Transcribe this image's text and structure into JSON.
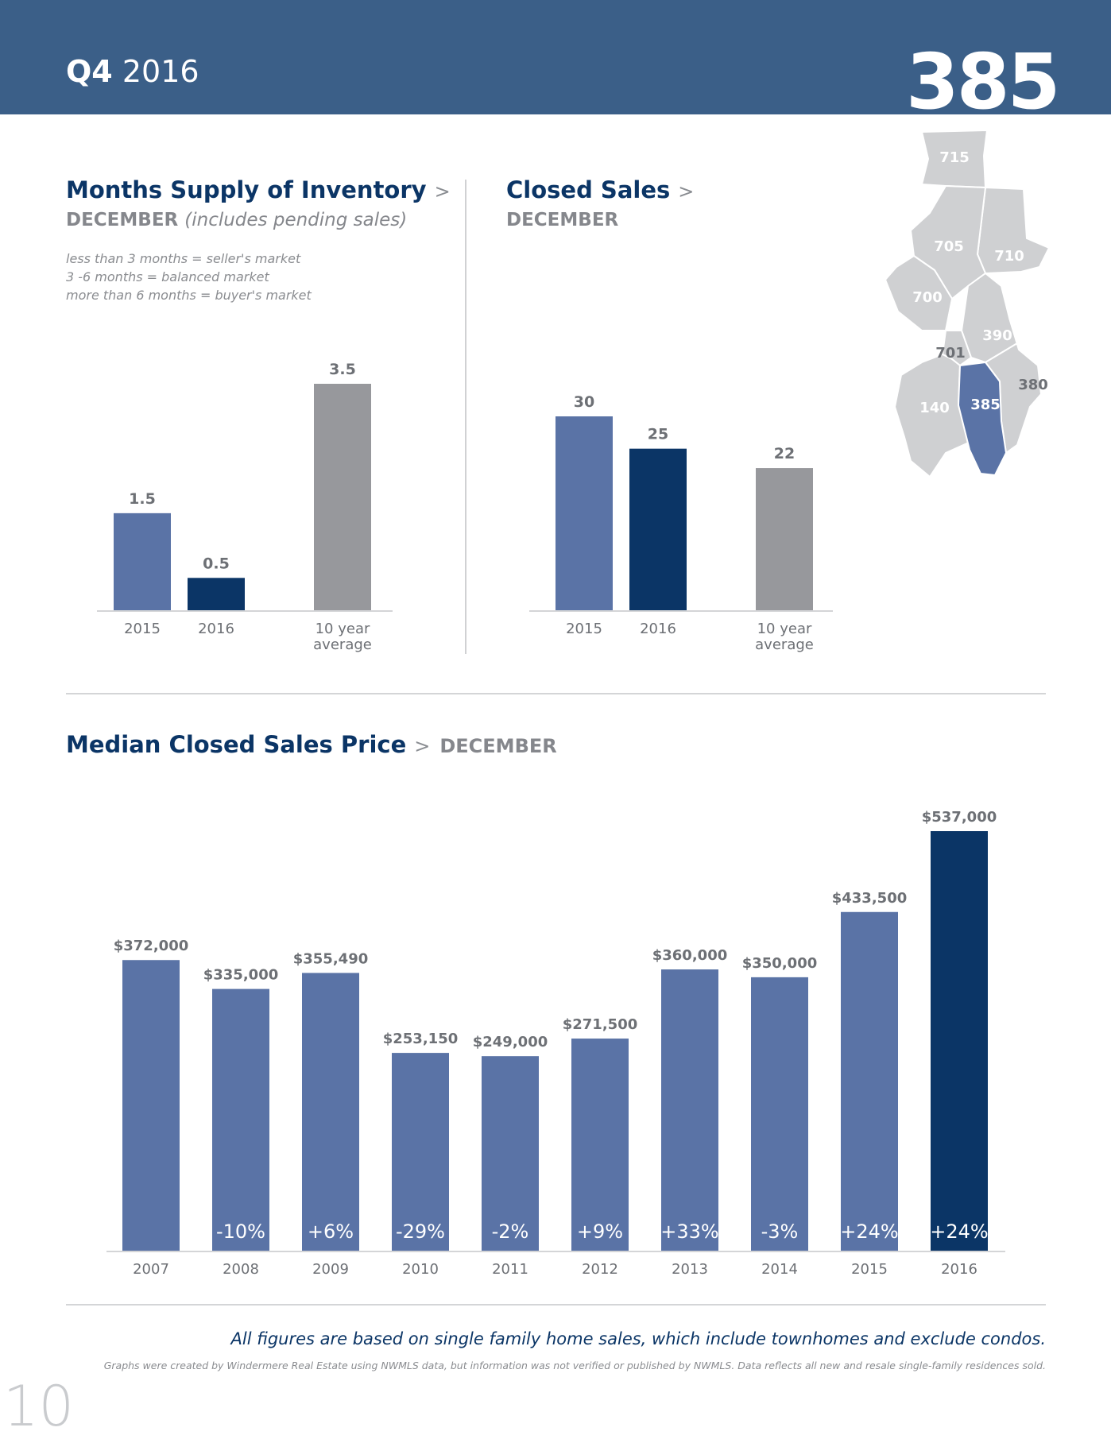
{
  "header": {
    "quarter": "Q4",
    "year": "2016",
    "region": "385"
  },
  "colors": {
    "header_bg": "#3b5f88",
    "bar_light": "#5a73a6",
    "bar_dark": "#0b3566",
    "bar_gray": "#97989c",
    "map_gray": "#cfd0d2",
    "map_highlight": "#5a73a6"
  },
  "supply": {
    "title": "Months Supply of Inventory",
    "arrow": ">",
    "subtitle": "DECEMBER",
    "subtitle_note": "(includes pending sales)",
    "notes": [
      "less than 3 months = seller's market",
      "3 -6 months = balanced market",
      "more than 6 months = buyer's market"
    ]
  },
  "closed": {
    "title": "Closed Sales",
    "arrow": ">",
    "subtitle": "DECEMBER"
  },
  "median": {
    "title": "Median Closed Sales Price",
    "arrow": ">",
    "subtitle": "DECEMBER"
  },
  "map": {
    "regions": [
      "715",
      "705",
      "710",
      "700",
      "390",
      "701",
      "380",
      "140",
      "385"
    ],
    "highlighted": "385"
  },
  "footer": {
    "note": "All figures are based on single family home sales, which include townhomes and exclude condos.",
    "disclaimer": "Graphs were created by Windermere Real Estate using NWMLS data, but information was not verified or published by NWMLS. Data reflects all new and resale single-family residences sold.",
    "page_number": "10"
  },
  "chart_data": [
    {
      "type": "bar",
      "title": "Months Supply of Inventory",
      "categories": [
        "2015",
        "2016",
        "10 year average"
      ],
      "category_lines": [
        [
          "2015"
        ],
        [
          "2016"
        ],
        [
          "10 year",
          "average"
        ]
      ],
      "values": [
        1.5,
        0.5,
        3.5
      ],
      "labels": [
        "1.5",
        "0.5",
        "3.5"
      ],
      "colors": [
        "#5a73a6",
        "#0b3566",
        "#97989c"
      ],
      "ylim": [
        0,
        3.5
      ]
    },
    {
      "type": "bar",
      "title": "Closed Sales",
      "categories": [
        "2015",
        "2016",
        "10 year average"
      ],
      "category_lines": [
        [
          "2015"
        ],
        [
          "2016"
        ],
        [
          "10 year",
          "average"
        ]
      ],
      "values": [
        30,
        25,
        22
      ],
      "labels": [
        "30",
        "25",
        "22"
      ],
      "colors": [
        "#5a73a6",
        "#0b3566",
        "#97989c"
      ],
      "ylim": [
        0,
        30
      ]
    },
    {
      "type": "bar",
      "title": "Median Closed Sales Price",
      "categories": [
        "2007",
        "2008",
        "2009",
        "2010",
        "2011",
        "2012",
        "2013",
        "2014",
        "2015",
        "2016"
      ],
      "values": [
        372000,
        335000,
        355490,
        253150,
        249000,
        271500,
        360000,
        350000,
        433500,
        537000
      ],
      "labels": [
        "$372,000",
        "$335,000",
        "$355,490",
        "$253,150",
        "$249,000",
        "$271,500",
        "$360,000",
        "$350,000",
        "$433,500",
        "$537,000"
      ],
      "changes": [
        "",
        "-10%",
        "+6%",
        "-29%",
        "-2%",
        "+9%",
        "+33%",
        "-3%",
        "+24%",
        "+24%"
      ],
      "colors": [
        "#5a73a6",
        "#5a73a6",
        "#5a73a6",
        "#5a73a6",
        "#5a73a6",
        "#5a73a6",
        "#5a73a6",
        "#5a73a6",
        "#5a73a6",
        "#0b3566"
      ],
      "ylim": [
        0,
        537000
      ]
    }
  ]
}
